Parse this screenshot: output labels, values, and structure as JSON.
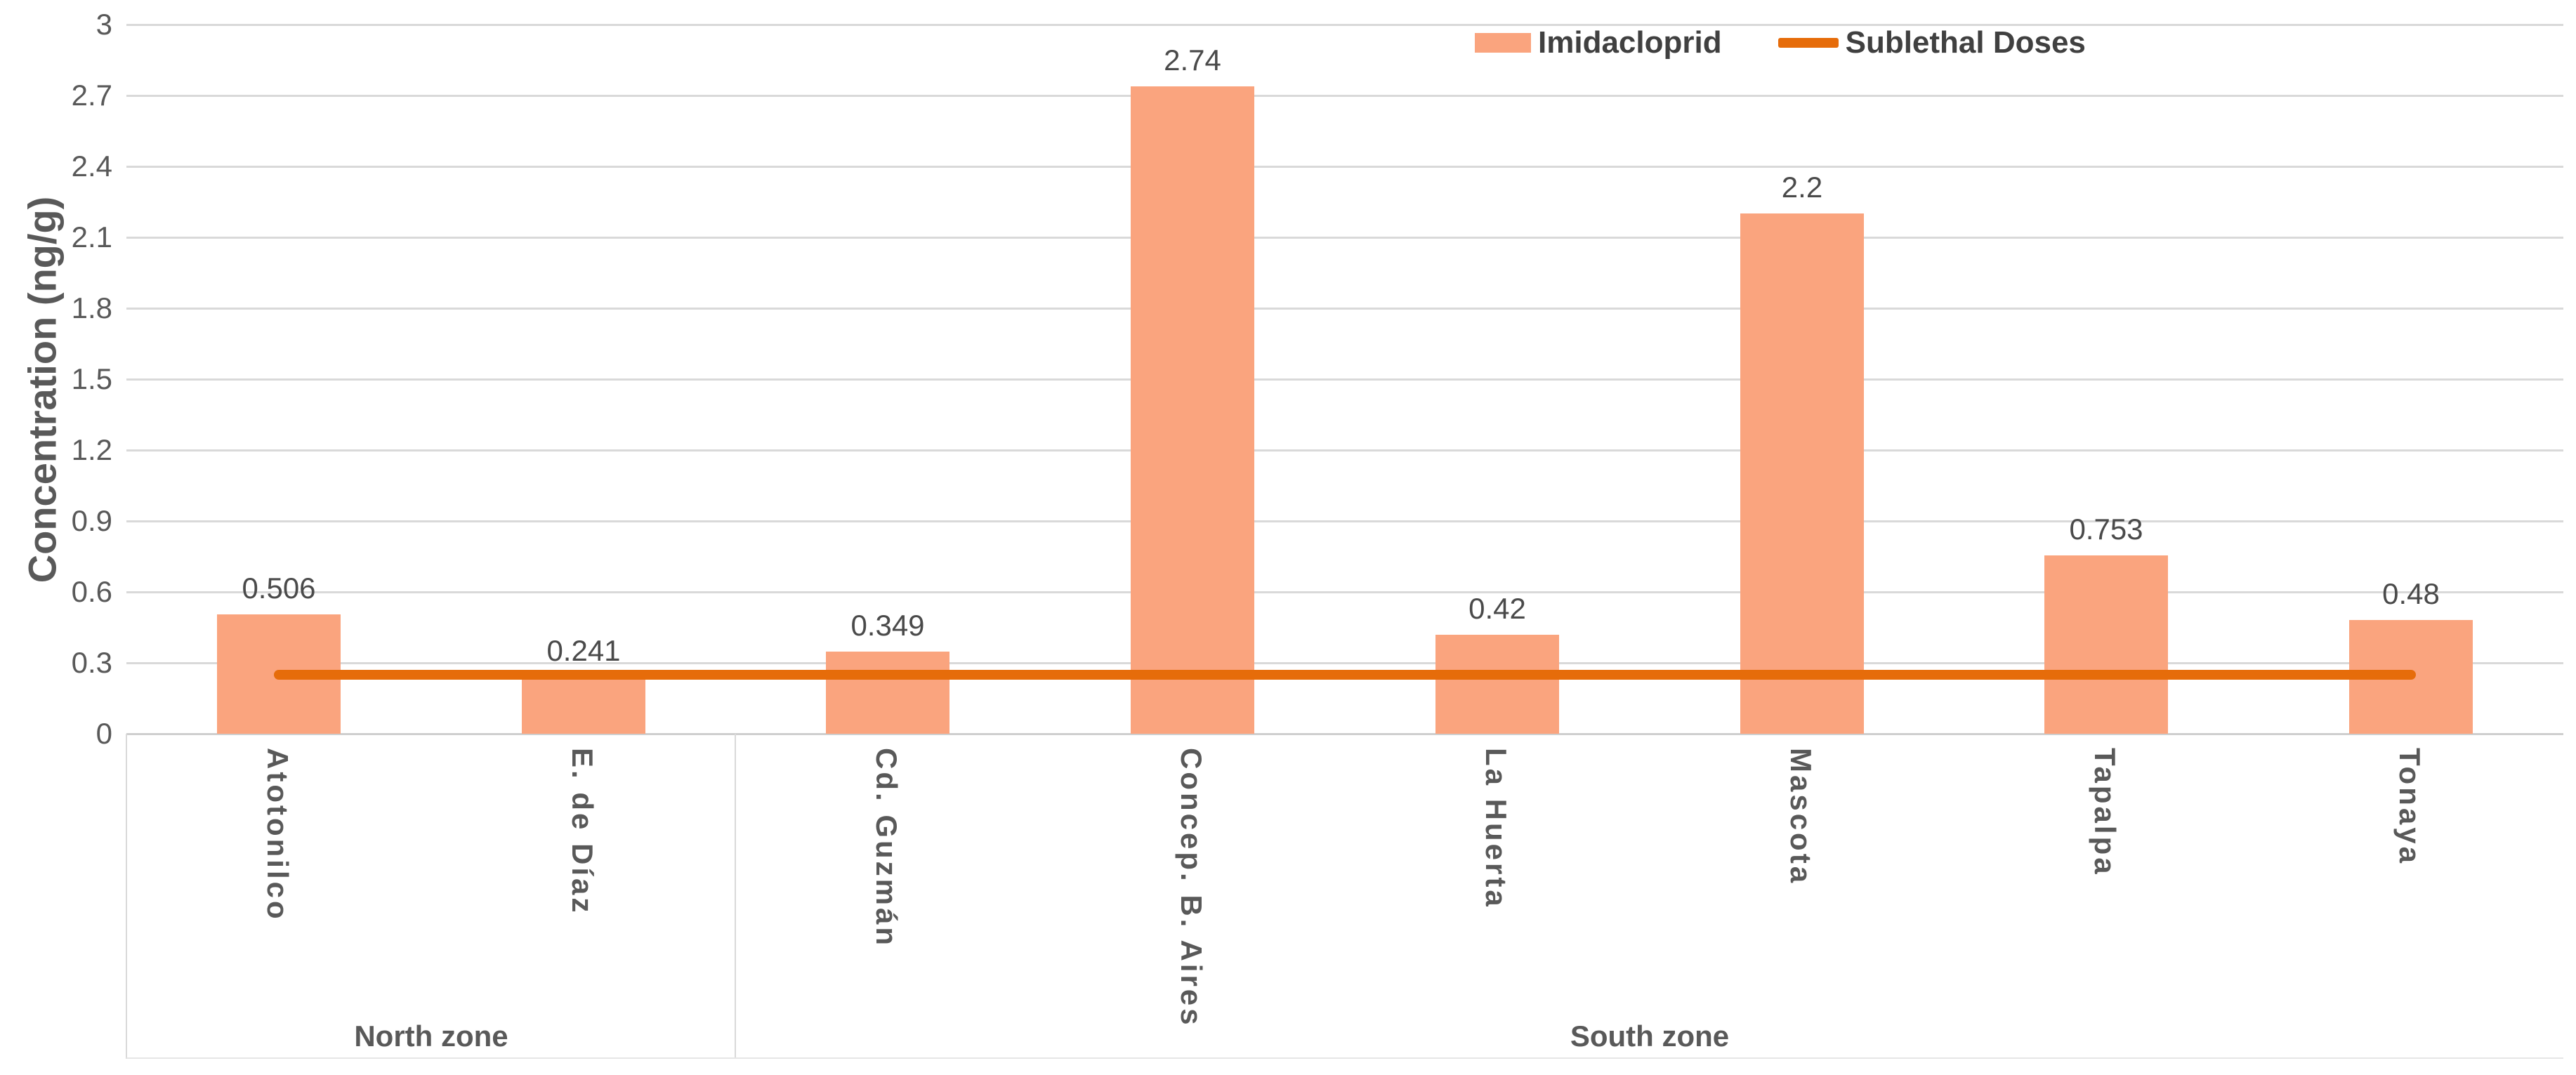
{
  "chart_data": {
    "type": "bar",
    "title": "",
    "xlabel": "",
    "ylabel": "Concentration (ng/g)",
    "ylim": [
      0,
      3
    ],
    "ytick_step": 0.3,
    "ytick_labels": [
      "0",
      "0.3",
      "0.6",
      "0.9",
      "1.2",
      "1.5",
      "1.8",
      "2.1",
      "2.4",
      "2.7",
      "3"
    ],
    "grid": true,
    "legend_position": "top",
    "categories": [
      "Atotonilco",
      "E. de Díaz",
      "Cd. Guzmán",
      "Concep. B. Aires",
      "La Huerta",
      "Mascota",
      "Tapalpa",
      "Tonaya"
    ],
    "groups": [
      {
        "label": "North zone",
        "count": 2
      },
      {
        "label": "South zone",
        "count": 6
      }
    ],
    "series": [
      {
        "name": "Imidacloprid",
        "type": "bar",
        "color": "#FAA47E",
        "values": [
          0.506,
          0.241,
          0.349,
          2.74,
          0.42,
          2.2,
          0.753,
          0.48
        ],
        "labels": [
          "0.506",
          "0.241",
          "0.349",
          "2.74",
          "0.42",
          "2.2",
          "0.753",
          "0.48"
        ]
      },
      {
        "name": "Sublethal Doses",
        "type": "line",
        "color": "#E66C0A",
        "value": 0.25
      }
    ]
  },
  "colors": {
    "bar": "#FAA47E",
    "line": "#E66C0A",
    "gridline": "#D9D9D9",
    "text": "#595959"
  }
}
